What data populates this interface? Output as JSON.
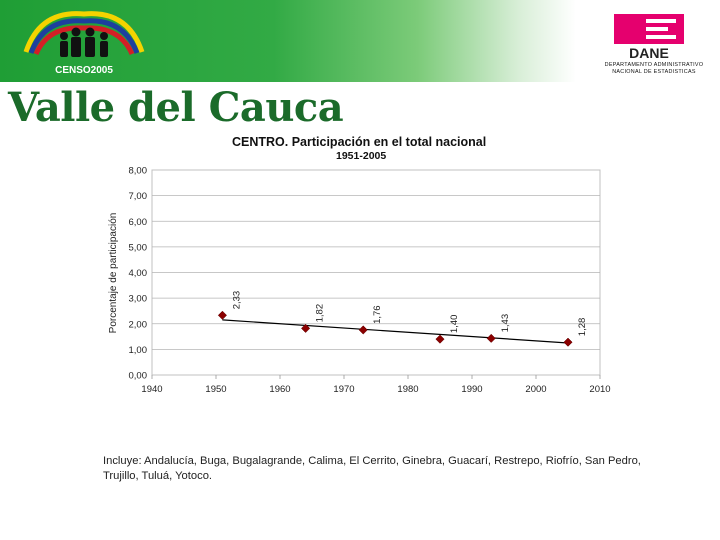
{
  "header": {
    "logo_text": "CENSO2005",
    "dane_logo_text": "DANE",
    "dane_subtitle_line1": "DEPARTAMENTO ADMINISTRATIVO",
    "dane_subtitle_line2": "NACIONAL DE ESTADISTICAS",
    "page_title": "Valle del Cauca"
  },
  "colors": {
    "banner": "#1f9e35",
    "marker": "#8b0000",
    "trend": "#000000",
    "title": "#1b6b2a",
    "dane": "#e5006e"
  },
  "chart_data": {
    "type": "scatter",
    "title": "CENTRO.   Participación en el total nacional",
    "subtitle": "1951-2005",
    "xlabel": "",
    "ylabel": "Porcentaje de participación",
    "xlim": [
      1940,
      2010
    ],
    "ylim": [
      0,
      8
    ],
    "x_ticks": [
      1940,
      1950,
      1960,
      1970,
      1980,
      1990,
      2000,
      2010
    ],
    "y_tick_labels": [
      "0,00",
      "1,00",
      "2,00",
      "3,00",
      "4,00",
      "5,00",
      "6,00",
      "7,00",
      "8,00"
    ],
    "x": [
      1951,
      1964,
      1973,
      1985,
      1993,
      2005
    ],
    "values": [
      2.33,
      1.82,
      1.76,
      1.4,
      1.43,
      1.28
    ],
    "data_labels": [
      "2,33",
      "1,82",
      "1,76",
      "1,40",
      "1,43",
      "1,28"
    ],
    "trendline": {
      "x": [
        1951,
        2005
      ],
      "y": [
        2.15,
        1.25
      ]
    },
    "grid": true,
    "legend": "none"
  },
  "note": "Incluye: Andalucía, Buga, Bugalagrande, Calima, El Cerrito, Ginebra, Guacarí, Restrepo, Riofrío, San Pedro, Trujillo, Tuluá, Yotoco."
}
